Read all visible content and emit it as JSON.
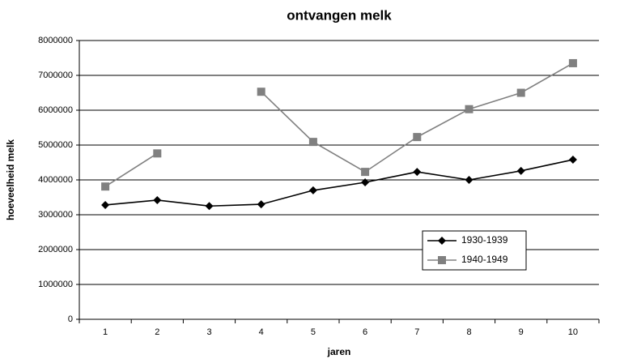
{
  "chart_data": {
    "type": "line",
    "title": "ontvangen melk",
    "x_label": "jaren",
    "y_label": "hoeveelheid melk",
    "categories": [
      "1",
      "2",
      "3",
      "4",
      "5",
      "6",
      "7",
      "8",
      "9",
      "10"
    ],
    "series": [
      {
        "name": "1930-1939",
        "color": "#000000",
        "marker": "diamond",
        "values": [
          3280000,
          3420000,
          3250000,
          3300000,
          3700000,
          3930000,
          4230000,
          4000000,
          4260000,
          4580000
        ]
      },
      {
        "name": "1940-1949",
        "color": "#808080",
        "marker": "square",
        "values": [
          3810000,
          4760000,
          null,
          6530000,
          5090000,
          4230000,
          5230000,
          6030000,
          6500000,
          7350000
        ]
      }
    ],
    "ylim": [
      0,
      8000000
    ],
    "yticks": [
      0,
      1000000,
      2000000,
      3000000,
      4000000,
      5000000,
      6000000,
      7000000,
      8000000
    ],
    "grid": true
  }
}
